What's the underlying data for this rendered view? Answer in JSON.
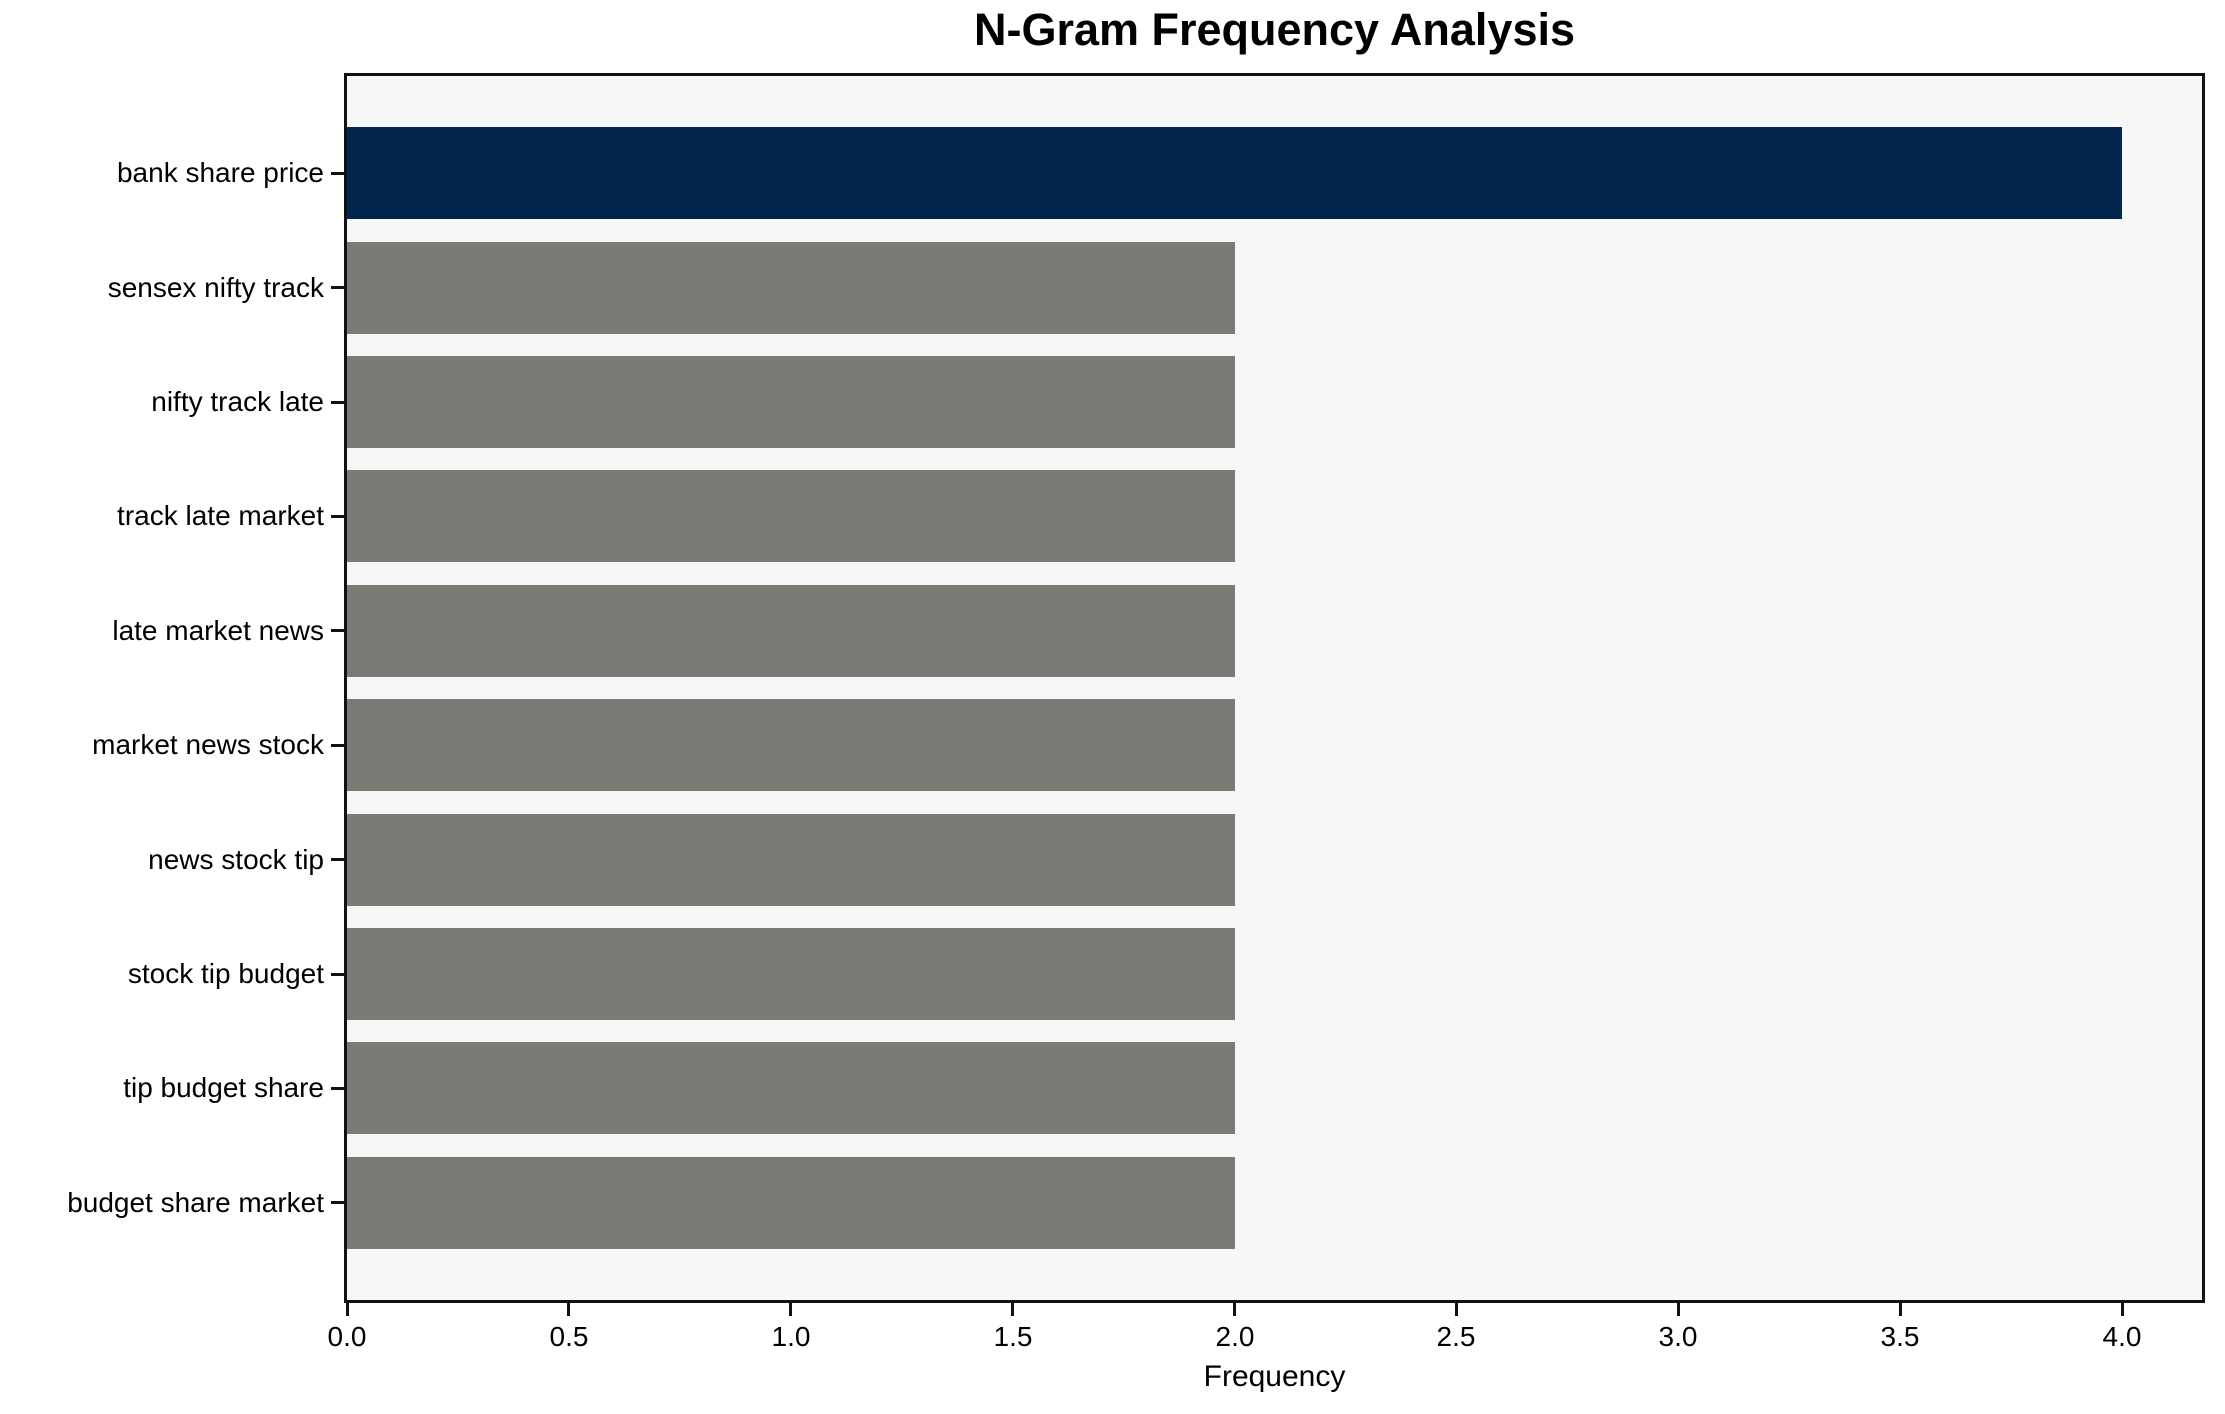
{
  "chart_data": {
    "type": "bar",
    "orientation": "horizontal",
    "title": "N-Gram Frequency Analysis",
    "xlabel": "Frequency",
    "ylabel": "",
    "categories": [
      "bank share price",
      "sensex nifty track",
      "nifty track late",
      "track late market",
      "late market news",
      "market news stock",
      "news stock tip",
      "stock tip budget",
      "tip budget share",
      "budget share market"
    ],
    "values": [
      4,
      2,
      2,
      2,
      2,
      2,
      2,
      2,
      2,
      2
    ],
    "highlight_index": 0,
    "colors": {
      "highlight_bar": "#03264e",
      "default_bar": "#7b7a74",
      "plot_background": "#f7f7f7",
      "figure_background": "#ffffff",
      "spine": "#111111",
      "text": "#000000"
    },
    "x_ticks": [
      "0.0",
      "0.5",
      "1.0",
      "1.5",
      "2.0",
      "2.5",
      "3.0",
      "3.5",
      "4.0"
    ],
    "x_tick_values": [
      0,
      0.5,
      1,
      1.5,
      2,
      2.5,
      3,
      3.5,
      4
    ],
    "xlim": [
      0,
      4.18
    ],
    "grid": false,
    "legend": null
  }
}
